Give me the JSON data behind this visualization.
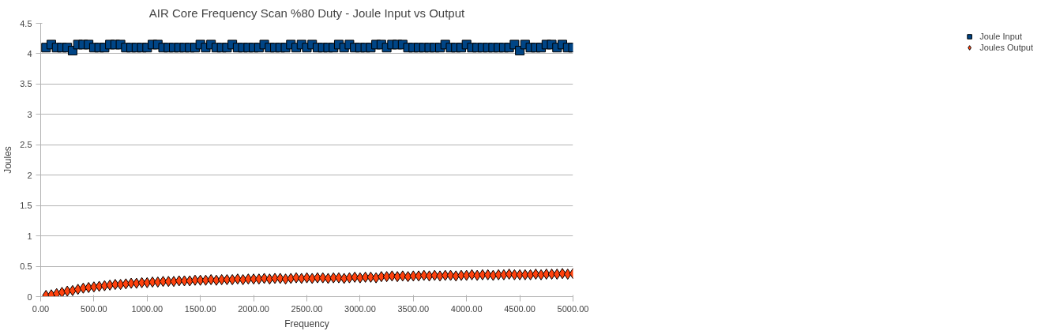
{
  "chart_data": {
    "type": "scatter",
    "title": "AIR Core Frequency Scan %80 Duty - Joule Input vs Output",
    "xlabel": "Frequency",
    "ylabel": "Joules",
    "x": [
      50,
      100,
      150,
      200,
      250,
      300,
      350,
      400,
      450,
      500,
      550,
      600,
      650,
      700,
      750,
      800,
      850,
      900,
      950,
      1000,
      1050,
      1100,
      1150,
      1200,
      1250,
      1300,
      1350,
      1400,
      1450,
      1500,
      1550,
      1600,
      1650,
      1700,
      1750,
      1800,
      1850,
      1900,
      1950,
      2000,
      2050,
      2100,
      2150,
      2200,
      2250,
      2300,
      2350,
      2400,
      2450,
      2500,
      2550,
      2600,
      2650,
      2700,
      2750,
      2800,
      2850,
      2900,
      2950,
      3000,
      3050,
      3100,
      3150,
      3200,
      3250,
      3300,
      3350,
      3400,
      3450,
      3500,
      3550,
      3600,
      3650,
      3700,
      3750,
      3800,
      3850,
      3900,
      3950,
      4000,
      4050,
      4100,
      4150,
      4200,
      4250,
      4300,
      4350,
      4400,
      4450,
      4500,
      4550,
      4600,
      4650,
      4700,
      4750,
      4800,
      4850,
      4900,
      4950,
      5000
    ],
    "series": [
      {
        "name": "Joule Input",
        "color": "#004586",
        "marker": "square",
        "values": [
          4.1,
          4.15,
          4.1,
          4.1,
          4.1,
          4.05,
          4.15,
          4.15,
          4.15,
          4.1,
          4.1,
          4.1,
          4.15,
          4.15,
          4.15,
          4.1,
          4.1,
          4.1,
          4.1,
          4.1,
          4.15,
          4.15,
          4.1,
          4.1,
          4.1,
          4.1,
          4.1,
          4.1,
          4.1,
          4.15,
          4.1,
          4.15,
          4.1,
          4.1,
          4.1,
          4.15,
          4.1,
          4.1,
          4.1,
          4.1,
          4.1,
          4.15,
          4.1,
          4.1,
          4.1,
          4.1,
          4.15,
          4.1,
          4.15,
          4.1,
          4.15,
          4.1,
          4.1,
          4.1,
          4.1,
          4.15,
          4.1,
          4.15,
          4.1,
          4.1,
          4.1,
          4.1,
          4.15,
          4.15,
          4.1,
          4.15,
          4.15,
          4.15,
          4.1,
          4.1,
          4.1,
          4.1,
          4.1,
          4.1,
          4.1,
          4.15,
          4.1,
          4.1,
          4.1,
          4.15,
          4.1,
          4.1,
          4.1,
          4.1,
          4.1,
          4.1,
          4.1,
          4.1,
          4.15,
          4.05,
          4.15,
          4.1,
          4.1,
          4.1,
          4.15,
          4.15,
          4.1,
          4.15,
          4.1,
          4.1
        ]
      },
      {
        "name": "Joules Output",
        "color": "#ff420e",
        "marker": "diamond",
        "values": [
          0.02,
          0.03,
          0.05,
          0.07,
          0.09,
          0.1,
          0.12,
          0.14,
          0.15,
          0.16,
          0.17,
          0.18,
          0.19,
          0.2,
          0.2,
          0.21,
          0.22,
          0.22,
          0.23,
          0.23,
          0.24,
          0.24,
          0.25,
          0.25,
          0.25,
          0.26,
          0.26,
          0.26,
          0.27,
          0.27,
          0.27,
          0.28,
          0.27,
          0.28,
          0.28,
          0.28,
          0.29,
          0.28,
          0.29,
          0.29,
          0.29,
          0.3,
          0.29,
          0.3,
          0.3,
          0.29,
          0.3,
          0.31,
          0.3,
          0.31,
          0.3,
          0.31,
          0.31,
          0.3,
          0.31,
          0.31,
          0.3,
          0.31,
          0.32,
          0.31,
          0.32,
          0.32,
          0.31,
          0.33,
          0.33,
          0.34,
          0.33,
          0.34,
          0.33,
          0.34,
          0.34,
          0.35,
          0.34,
          0.35,
          0.34,
          0.35,
          0.35,
          0.34,
          0.35,
          0.35,
          0.36,
          0.35,
          0.36,
          0.36,
          0.35,
          0.36,
          0.36,
          0.37,
          0.36,
          0.36,
          0.36,
          0.36,
          0.37,
          0.36,
          0.37,
          0.37,
          0.37,
          0.38,
          0.37,
          0.38
        ]
      }
    ],
    "xlim": [
      0,
      5000
    ],
    "xticks": [
      {
        "value": 0,
        "label": "0.00"
      },
      {
        "value": 500,
        "label": "500.00"
      },
      {
        "value": 1000,
        "label": "1000.00"
      },
      {
        "value": 1500,
        "label": "1500.00"
      },
      {
        "value": 2000,
        "label": "2000.00"
      },
      {
        "value": 2500,
        "label": "2500.00"
      },
      {
        "value": 3000,
        "label": "3000.00"
      },
      {
        "value": 3500,
        "label": "3500.00"
      },
      {
        "value": 4000,
        "label": "4000.00"
      },
      {
        "value": 4500,
        "label": "4500.00"
      },
      {
        "value": 5000,
        "label": "5000.00"
      }
    ],
    "ylim": [
      0,
      4.5
    ],
    "yticks": [
      0,
      0.5,
      1,
      1.5,
      2,
      2.5,
      3,
      3.5,
      4,
      4.5
    ],
    "grid": "y",
    "legend": "right"
  }
}
